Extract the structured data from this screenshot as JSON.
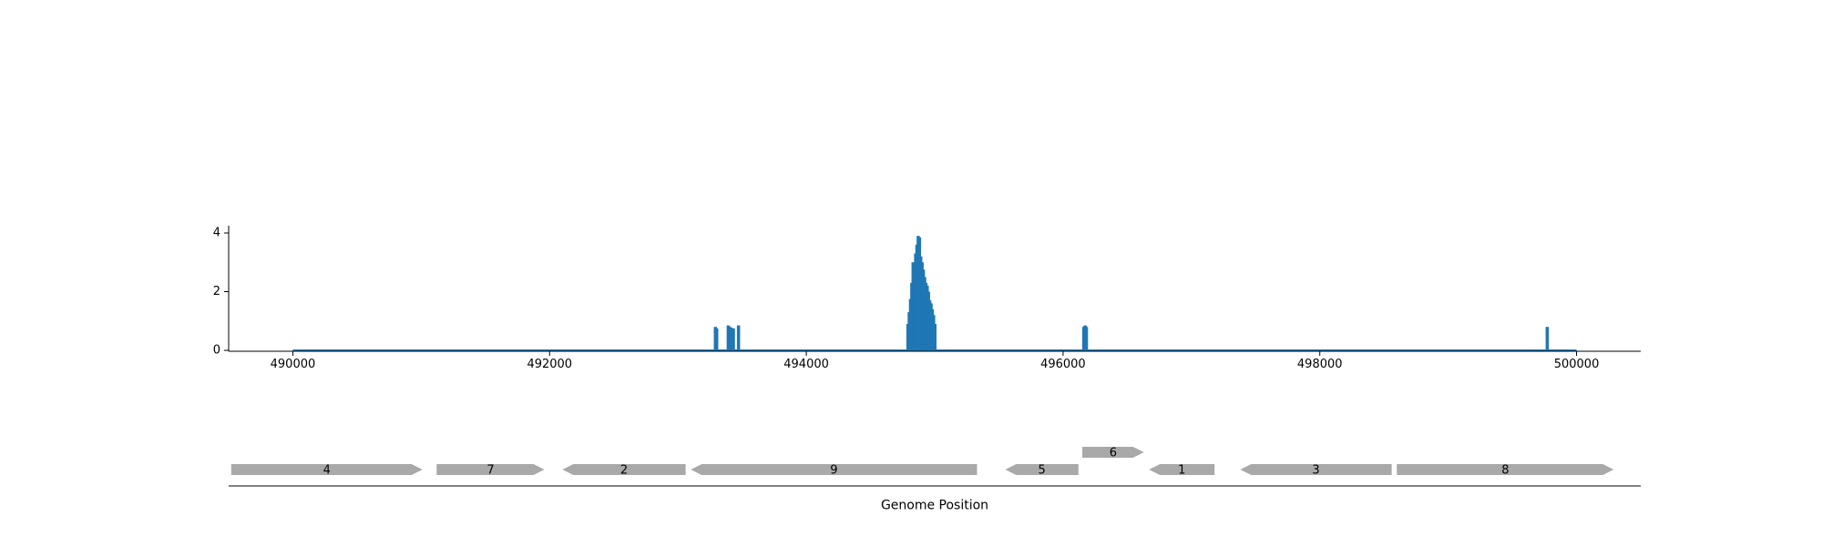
{
  "chart_data": [
    {
      "type": "area",
      "title": "",
      "xlabel": "",
      "ylabel": "",
      "xlim": [
        489500,
        500500
      ],
      "ylim": [
        0,
        4.2
      ],
      "xticks": [
        490000,
        492000,
        494000,
        496000,
        498000,
        500000
      ],
      "xtick_labels": [
        "490000",
        "492000",
        "494000",
        "496000",
        "498000",
        "500000"
      ],
      "yticks": [
        0,
        2,
        4
      ],
      "ytick_labels": [
        "0",
        "2",
        "4"
      ],
      "grid": false,
      "baseline_range": [
        490000,
        500000
      ],
      "series": [
        {
          "x": [
            493290,
            493300,
            493390,
            493400,
            493410,
            493430,
            493470,
            494790,
            494800,
            494810,
            494820,
            494830,
            494840,
            494850,
            494860,
            494870,
            494880,
            494890,
            494900,
            494910,
            494920,
            494930,
            494940,
            494950,
            494960,
            494970,
            494980,
            494990,
            495000,
            496160,
            496170,
            496180,
            499770
          ],
          "y": [
            0.8,
            0.75,
            0.85,
            0.8,
            0.78,
            0.75,
            0.85,
            0.9,
            1.3,
            1.75,
            2.3,
            3.0,
            2.9,
            3.3,
            3.6,
            3.9,
            3.85,
            3.2,
            3.0,
            2.75,
            2.5,
            2.3,
            2.2,
            2.0,
            1.7,
            1.6,
            1.4,
            1.2,
            0.9,
            0.8,
            0.85,
            0.8,
            0.8
          ]
        }
      ],
      "color": "#1f77b4"
    },
    {
      "type": "gene_track",
      "xlabel": "Genome Position",
      "color": "#a9a9a9",
      "genes": [
        {
          "label": "4",
          "start": 489520,
          "end": 491010,
          "strand": "+",
          "row": 0
        },
        {
          "label": "7",
          "start": 491120,
          "end": 491960,
          "strand": "+",
          "row": 0
        },
        {
          "label": "2",
          "start": 492100,
          "end": 493060,
          "strand": "-",
          "row": 0
        },
        {
          "label": "9",
          "start": 493100,
          "end": 495330,
          "strand": "-",
          "row": 0
        },
        {
          "label": "5",
          "start": 495550,
          "end": 496120,
          "strand": "-",
          "row": 0
        },
        {
          "label": "6",
          "start": 496150,
          "end": 496630,
          "strand": "+",
          "row": 1
        },
        {
          "label": "1",
          "start": 496670,
          "end": 497180,
          "strand": "-",
          "row": 0
        },
        {
          "label": "3",
          "start": 497380,
          "end": 498560,
          "strand": "-",
          "row": 0
        },
        {
          "label": "8",
          "start": 498600,
          "end": 500290,
          "strand": "+",
          "row": 0
        }
      ]
    }
  ]
}
